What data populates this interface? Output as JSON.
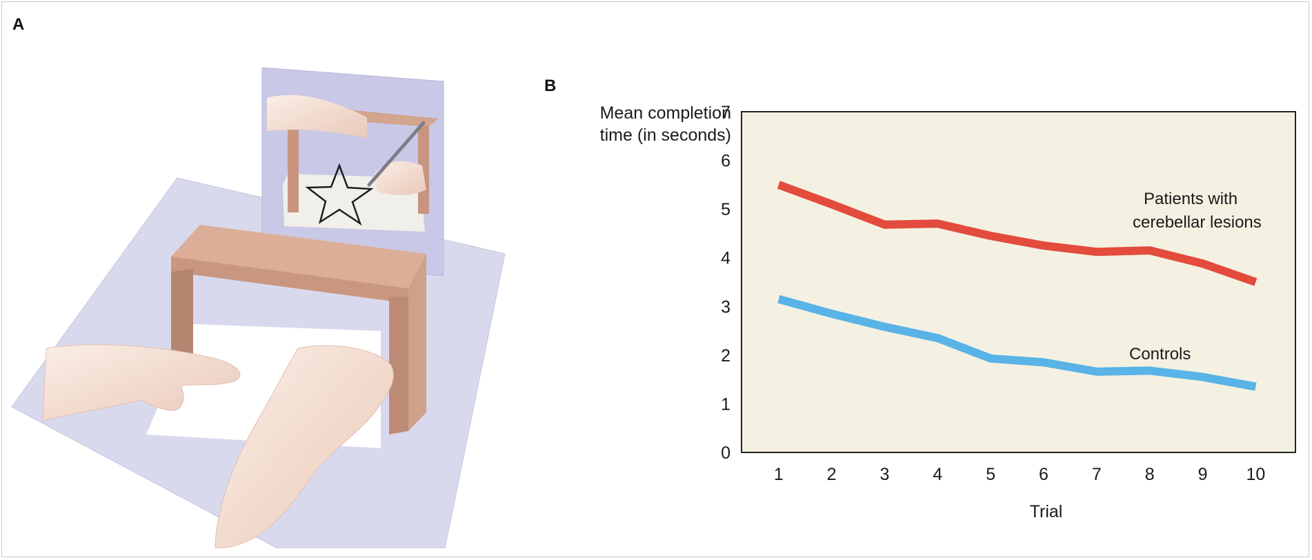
{
  "panels": {
    "a": {
      "letter": "A"
    },
    "b": {
      "letter": "B"
    }
  },
  "colors": {
    "plot_background": "#f4f1e2",
    "patients": "#e34b3c",
    "controls": "#59b3e6",
    "axis": "#222222",
    "desk_surface": "#d9d9ee",
    "mirror_panel": "#c9c8e6",
    "box_wood": "#c89a84"
  },
  "illustration": {
    "icons": [
      "mirror-panel-icon",
      "box-shield-icon",
      "star-outline-icon",
      "hand-icon",
      "pencil-icon"
    ]
  },
  "chart_data": {
    "type": "line",
    "title": "",
    "ylabel_lines": [
      "Mean completion",
      "time (in seconds)"
    ],
    "xlabel": "Trial",
    "x": [
      1,
      2,
      3,
      4,
      5,
      6,
      7,
      8,
      9,
      10
    ],
    "xlim": [
      0.3,
      10.75
    ],
    "ylim": [
      0,
      7
    ],
    "yticks": [
      0,
      1,
      2,
      3,
      4,
      5,
      6,
      7
    ],
    "grid": false,
    "series": [
      {
        "name_lines": [
          "Patients with",
          "cerebellar lesions"
        ],
        "color": "#e34b3c",
        "values": [
          5.5,
          5.1,
          4.68,
          4.7,
          4.45,
          4.25,
          4.12,
          4.15,
          3.88,
          3.5
        ]
      },
      {
        "name_lines": [
          "Controls"
        ],
        "color": "#59b3e6",
        "values": [
          3.15,
          2.85,
          2.58,
          2.35,
          1.93,
          1.85,
          1.66,
          1.68,
          1.55,
          1.35
        ]
      }
    ]
  }
}
